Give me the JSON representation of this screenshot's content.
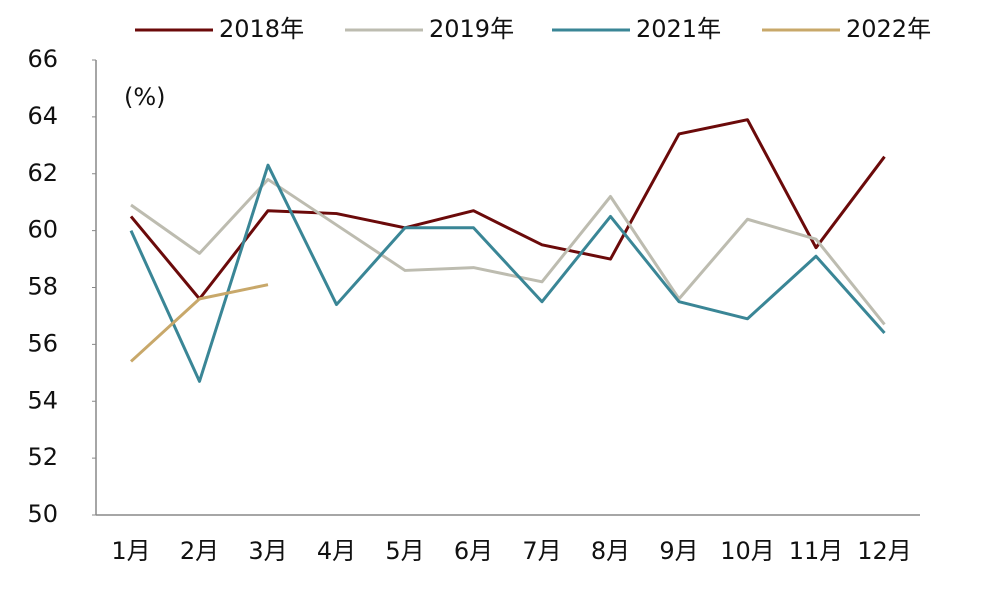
{
  "chart_data": {
    "type": "line",
    "y_label": "(%)",
    "categories": [
      "1月",
      "2月",
      "3月",
      "4月",
      "5月",
      "6月",
      "7月",
      "8月",
      "9月",
      "10月",
      "11月",
      "12月"
    ],
    "series": [
      {
        "name": "2018年",
        "color": "#6b0a0a",
        "values": [
          60.5,
          57.6,
          60.7,
          60.6,
          60.1,
          60.7,
          59.5,
          59.0,
          63.4,
          63.9,
          59.4,
          62.6
        ]
      },
      {
        "name": "2019年",
        "color": "#bdbcb0",
        "values": [
          60.9,
          59.2,
          61.8,
          60.2,
          58.6,
          58.7,
          58.2,
          61.2,
          57.6,
          60.4,
          59.7,
          56.7
        ]
      },
      {
        "name": "2021年",
        "color": "#3a8696",
        "values": [
          60.0,
          54.7,
          62.3,
          57.4,
          60.1,
          60.1,
          57.5,
          60.5,
          57.5,
          56.9,
          59.1,
          56.4
        ]
      },
      {
        "name": "2022年",
        "color": "#c8a86a",
        "values": [
          55.4,
          57.6,
          58.1,
          null,
          null,
          null,
          null,
          null,
          null,
          null,
          null,
          null
        ]
      }
    ],
    "ylim": [
      50,
      66
    ],
    "yticks": [
      50,
      52,
      54,
      56,
      58,
      60,
      62,
      64,
      66
    ],
    "legend": "top"
  }
}
